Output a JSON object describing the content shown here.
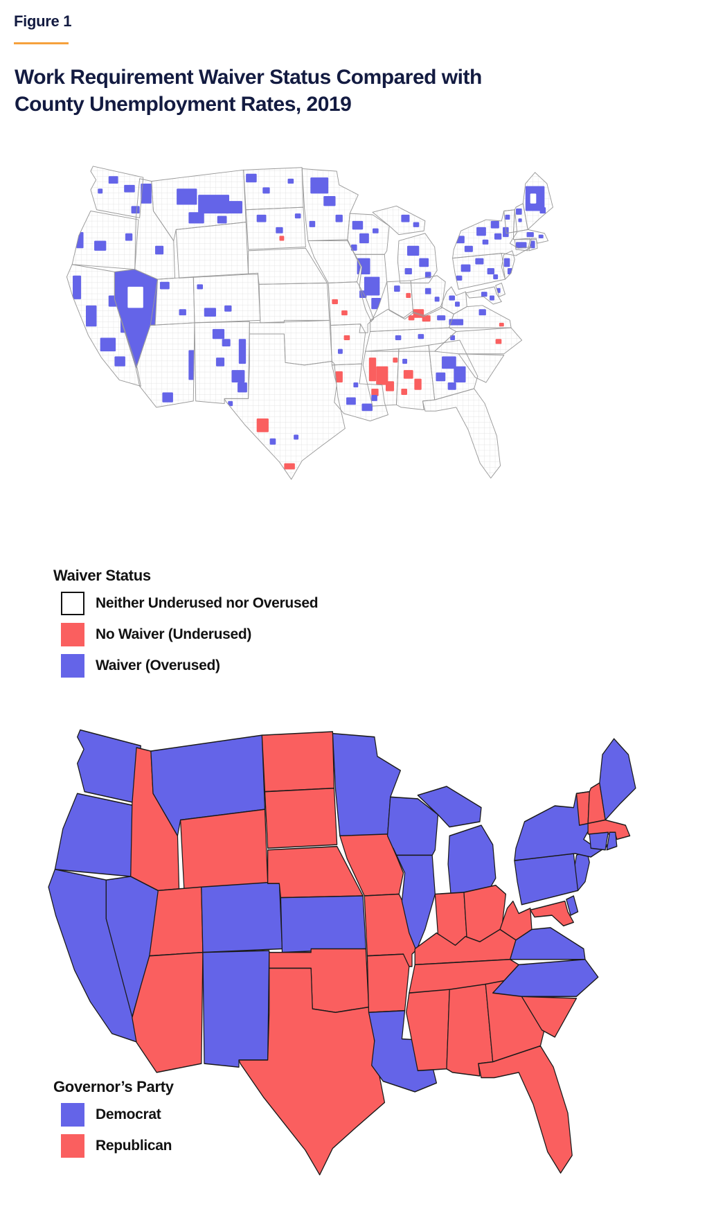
{
  "figure_label": "Figure 1",
  "title_line1": "Work Requirement Waiver Status Compared with",
  "title_line2": "County Unemployment Rates, 2019",
  "colors": {
    "title_navy": "#131b41",
    "accent_orange": "#f6a13c",
    "waiver_blue": "#6464e8",
    "no_waiver_red": "#fa5f5f",
    "neither_white": "#ffffff",
    "county_line": "#dcdcdc",
    "state_line_county_map": "#9a9a9a",
    "state_line_party_map": "#1a1a1a"
  },
  "waiver_legend": {
    "heading": "Waiver Status",
    "items": [
      {
        "label": "Neither Underused nor Overused",
        "color": "#ffffff"
      },
      {
        "label": "No Waiver (Underused)",
        "color": "#fa5f5f"
      },
      {
        "label": "Waiver (Overused)",
        "color": "#6464e8"
      }
    ]
  },
  "party_legend": {
    "heading": "Governor’s Party",
    "items": [
      {
        "label": "Democrat",
        "color": "#6464e8"
      },
      {
        "label": "Republican",
        "color": "#fa5f5f"
      }
    ]
  },
  "governor_party": {
    "WA": "D",
    "OR": "D",
    "CA": "D",
    "NV": "D",
    "ID": "R",
    "MT": "D",
    "WY": "R",
    "UT": "R",
    "CO": "D",
    "AZ": "R",
    "NM": "D",
    "ND": "R",
    "SD": "R",
    "NE": "R",
    "KS": "D",
    "OK": "R",
    "TX": "R",
    "MN": "D",
    "IA": "R",
    "MO": "R",
    "AR": "R",
    "LA": "D",
    "WI": "D",
    "IL": "D",
    "MI": "D",
    "IN": "R",
    "OH": "R",
    "KY": "R",
    "TN": "R",
    "MS": "R",
    "AL": "R",
    "GA": "R",
    "FL": "R",
    "SC": "R",
    "NC": "D",
    "VA": "D",
    "WV": "R",
    "PA": "D",
    "NY": "D",
    "NJ": "D",
    "DE": "D",
    "MD": "R",
    "CT": "D",
    "RI": "D",
    "MA": "R",
    "VT": "R",
    "NH": "R",
    "ME": "D"
  },
  "party_codes": {
    "D": "Democrat",
    "R": "Republican"
  }
}
